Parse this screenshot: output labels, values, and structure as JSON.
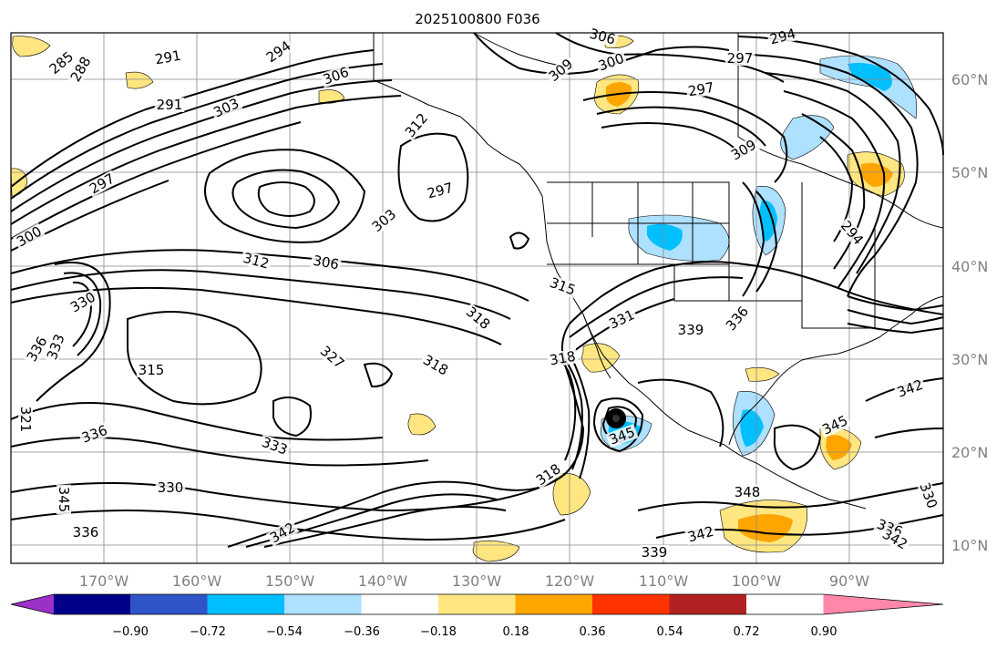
{
  "title": "2025100800 F036",
  "map": {
    "lon_ticks": [
      "170°W",
      "160°W",
      "150°W",
      "140°W",
      "130°W",
      "120°W",
      "110°W",
      "100°W",
      "90°W"
    ],
    "lat_ticks": [
      "60°N",
      "50°N",
      "40°N",
      "30°N",
      "20°N",
      "10°N"
    ],
    "contour_labels": [
      "285",
      "288",
      "291",
      "294",
      "306",
      "306",
      "300",
      "309",
      "294",
      "297",
      "297",
      "291",
      "303",
      "312",
      "309",
      "297",
      "297",
      "303",
      "300",
      "312",
      "306",
      "294",
      "330",
      "336",
      "333",
      "315",
      "315",
      "318",
      "318",
      "331",
      "339",
      "336",
      "327",
      "336",
      "333",
      "330",
      "318",
      "345",
      "345",
      "342",
      "348",
      "339",
      "336",
      "342",
      "345",
      "330",
      "342",
      "318",
      "321",
      "336",
      "342"
    ],
    "storm_marker": "cyclone-center"
  },
  "colorbar": {
    "colors": [
      "#9b30c8",
      "#000088",
      "#3055c8",
      "#00bfff",
      "#aee0ff",
      "#ffffff",
      "#ffe680",
      "#ffa500",
      "#ff3300",
      "#b22222",
      "#ff88aa"
    ],
    "tick_labels": [
      "−0.90",
      "−0.72",
      "−0.54",
      "−0.36",
      "−0.18",
      "0.18",
      "0.36",
      "0.54",
      "0.72",
      "0.90"
    ]
  }
}
